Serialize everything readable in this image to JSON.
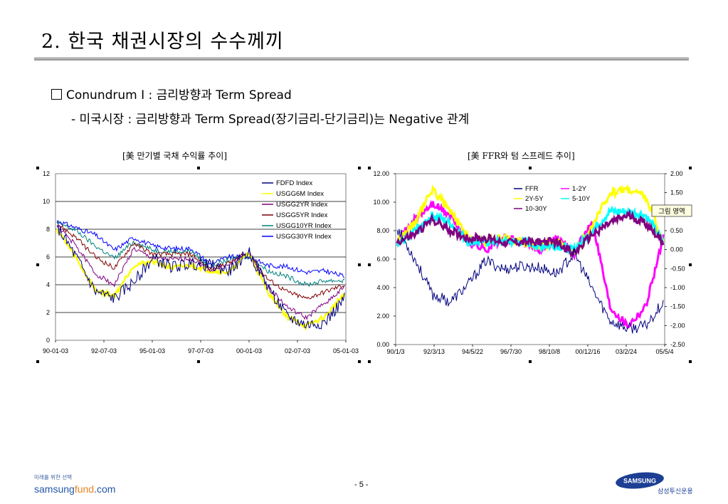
{
  "title": "2. 한국 채권시장의 수수께끼",
  "bullet1": "Conundrum I : 금리방향과 Term Spread",
  "bullet2": "- 미국시장 : 금리방향과 Term Spread(장기금리-단기금리)는 Negative 관계",
  "footer": {
    "tagline": "미래를 위한 선택",
    "brand_a": "samsung",
    "brand_b": "fund",
    "brand_c": ".com",
    "page": "- 5 -",
    "logo_text": "SAMSUNG",
    "company": "삼성투신운용"
  },
  "colors": {
    "navy": "#000080",
    "yellow": "#ffff00",
    "purple": "#800080",
    "maroon": "#800000",
    "teal": "#008080",
    "blue": "#0000ff",
    "magenta": "#ff00ff",
    "cyan": "#00ffff"
  },
  "chart_data": [
    {
      "type": "line",
      "title": "[美 만기별 국채 수익률 추이]",
      "ylim": [
        0,
        12
      ],
      "y_ticks": [
        "0",
        "2",
        "4",
        "6",
        "8",
        "10",
        "12"
      ],
      "x_ticks": [
        "90-01-03",
        "92-07-03",
        "95-01-03",
        "97-07-03",
        "00-01-03",
        "02-07-03",
        "05-01-03"
      ],
      "grid": "horizontal",
      "legend": "top-right",
      "x": [
        "1990",
        "1991",
        "1992",
        "1993",
        "1994",
        "1995",
        "1996",
        "1997",
        "1998",
        "1999",
        "2000",
        "2001",
        "2002",
        "2003",
        "2004",
        "2005"
      ],
      "series": [
        {
          "name": "FDFD Index",
          "color": "#000080",
          "values": [
            8.2,
            6.0,
            3.5,
            3.0,
            4.2,
            5.9,
            5.3,
            5.5,
            5.4,
            5.0,
            6.4,
            3.9,
            1.7,
            1.1,
            1.3,
            3.0
          ]
        },
        {
          "name": "USGG6M Index",
          "color": "#ffff00",
          "values": [
            8.0,
            5.9,
            3.6,
            3.2,
            5.4,
            5.7,
            5.2,
            5.4,
            5.0,
            4.9,
            6.3,
            3.5,
            1.7,
            1.0,
            1.7,
            3.4
          ]
        },
        {
          "name": "USGG2YR Index",
          "color": "#800080",
          "values": [
            8.3,
            6.8,
            4.8,
            4.0,
            6.6,
            5.9,
            5.8,
            5.9,
            5.0,
            5.4,
            6.4,
            3.9,
            2.4,
            1.6,
            2.7,
            3.8
          ]
        },
        {
          "name": "USGG5YR Index",
          "color": "#800000",
          "values": [
            8.4,
            7.4,
            6.0,
            5.2,
            7.0,
            6.2,
            6.2,
            6.2,
            5.1,
            5.6,
            6.3,
            4.4,
            3.5,
            3.0,
            3.5,
            4.0
          ]
        },
        {
          "name": "USGG10YR Index",
          "color": "#008080",
          "values": [
            8.5,
            7.9,
            6.8,
            5.9,
            7.1,
            6.5,
            6.4,
            6.4,
            5.3,
            5.8,
            6.1,
            5.0,
            4.6,
            4.0,
            4.3,
            4.3
          ]
        },
        {
          "name": "USGG30YR Index",
          "color": "#0000ff",
          "values": [
            8.6,
            8.1,
            7.6,
            6.5,
            7.4,
            6.8,
            6.6,
            6.6,
            5.5,
            6.0,
            6.0,
            5.4,
            5.3,
            4.9,
            5.0,
            4.6
          ]
        }
      ]
    },
    {
      "type": "line",
      "title": "[美 FFR와 텀 스프레드 추이]",
      "ylim": [
        0,
        12
      ],
      "y_ticks": [
        "0.00",
        "2.00",
        "4.00",
        "6.00",
        "8.00",
        "10.00",
        "12.00"
      ],
      "y2lim": [
        -2.5,
        2
      ],
      "y2_ticks": [
        "-2.50",
        "-2.00",
        "-1.50",
        "-1.00",
        "-0.50",
        "0.00",
        "0.50",
        "1.00",
        "1.50",
        "2.00"
      ],
      "x_ticks": [
        "90/1/3",
        "92/3/13",
        "94/5/22",
        "96/7/30",
        "98/10/8",
        "00/12/16",
        "03/2/24",
        "05/5/4"
      ],
      "grid": "none",
      "legend": "top-center",
      "tooltip": "그림 영역",
      "x": [
        "1990",
        "1991",
        "1992",
        "1993",
        "1994",
        "1995",
        "1996",
        "1997",
        "1998",
        "1999",
        "2000",
        "2001",
        "2002",
        "2003",
        "2004",
        "2005"
      ],
      "series": [
        {
          "name": "FFR",
          "axis": "left",
          "color": "#000080",
          "values": [
            8.2,
            6.0,
            3.5,
            3.0,
            4.2,
            5.9,
            5.3,
            5.5,
            5.4,
            5.0,
            6.4,
            3.9,
            1.7,
            1.1,
            1.3,
            3.0
          ]
        },
        {
          "name": "1-2Y",
          "axis": "right",
          "color": "#ff00ff",
          "values": [
            0.2,
            0.8,
            1.2,
            0.9,
            0.2,
            0.0,
            0.3,
            0.2,
            0.0,
            0.3,
            -0.1,
            0.8,
            -1.5,
            -2.0,
            -1.5,
            0.3
          ]
        },
        {
          "name": "2Y-5Y",
          "axis": "right",
          "color": "#ffff00",
          "values": [
            0.2,
            0.7,
            1.6,
            1.0,
            0.3,
            0.2,
            0.3,
            0.2,
            0.1,
            0.2,
            -0.1,
            0.6,
            1.5,
            1.6,
            1.4,
            0.2
          ]
        },
        {
          "name": "5-10Y",
          "axis": "right",
          "color": "#00ffff",
          "values": [
            0.1,
            0.5,
            0.9,
            0.7,
            0.2,
            0.2,
            0.2,
            0.2,
            0.1,
            0.1,
            0.0,
            0.5,
            1.0,
            1.0,
            0.9,
            0.2
          ]
        },
        {
          "name": "10-30Y",
          "axis": "right",
          "color": "#800080",
          "values": [
            0.2,
            0.4,
            0.8,
            0.5,
            0.3,
            0.3,
            0.2,
            0.2,
            0.2,
            0.2,
            -0.1,
            0.4,
            0.7,
            0.9,
            0.7,
            0.2
          ]
        }
      ]
    }
  ]
}
